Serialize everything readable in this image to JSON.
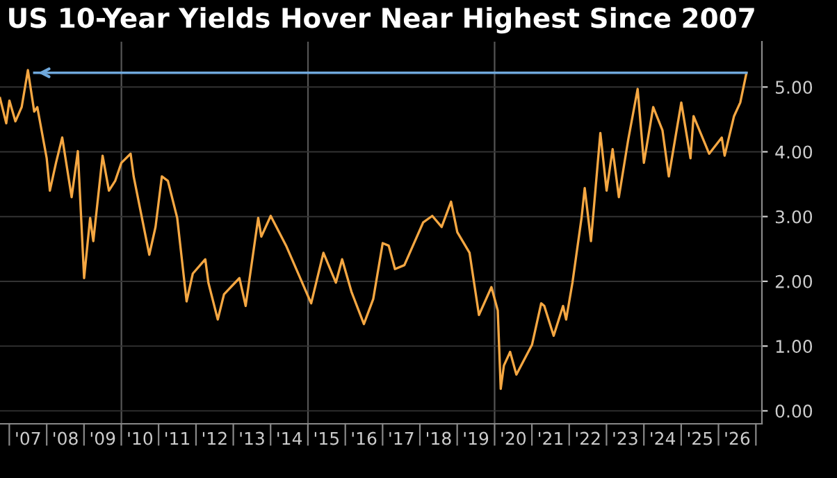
{
  "chart_data": {
    "type": "line",
    "title": "US 10-Year Yields Hover Near Highest Since 2007",
    "series": [
      {
        "color": "#f5a742",
        "x": [
          "2006-10",
          "2006-12",
          "2007-01",
          "2007-03",
          "2007-05",
          "2007-07",
          "2007-09",
          "2007-10",
          "2008-01",
          "2008-02",
          "2008-04",
          "2008-06",
          "2008-09",
          "2008-11",
          "2009-01",
          "2009-03",
          "2009-04",
          "2009-07",
          "2009-09",
          "2009-11",
          "2010-01",
          "2010-04",
          "2010-05",
          "2010-10",
          "2010-12",
          "2011-02",
          "2011-04",
          "2011-07",
          "2011-10",
          "2011-12",
          "2012-04",
          "2012-05",
          "2012-08",
          "2012-10",
          "2013-03",
          "2013-05",
          "2013-09",
          "2013-10",
          "2014-01",
          "2014-06",
          "2015-02",
          "2015-06",
          "2015-10",
          "2015-12",
          "2016-03",
          "2016-07",
          "2016-10",
          "2017-01",
          "2017-03",
          "2017-05",
          "2017-08",
          "2018-02",
          "2018-05",
          "2018-08",
          "2018-11",
          "2019-01",
          "2019-05",
          "2019-08",
          "2019-12",
          "2020-02",
          "2020-03",
          "2020-04",
          "2020-06",
          "2020-08",
          "2021-01",
          "2021-04",
          "2021-05",
          "2021-08",
          "2021-11",
          "2021-12",
          "2022-02",
          "2022-05",
          "2022-06",
          "2022-08",
          "2022-11",
          "2023-01",
          "2023-03",
          "2023-05",
          "2023-08",
          "2023-11",
          "2024-01",
          "2024-04",
          "2024-07",
          "2024-09",
          "2025-01",
          "2025-04",
          "2025-05",
          "2025-10",
          "2026-02",
          "2026-03",
          "2026-06",
          "2026-08",
          "2026-10"
        ],
        "values": [
          4.83,
          4.44,
          4.79,
          4.47,
          4.69,
          5.26,
          4.62,
          4.69,
          3.9,
          3.4,
          3.83,
          4.22,
          3.3,
          4.01,
          2.05,
          2.98,
          2.62,
          3.94,
          3.4,
          3.55,
          3.83,
          3.97,
          3.62,
          2.41,
          2.84,
          3.62,
          3.55,
          2.98,
          1.69,
          2.12,
          2.34,
          1.98,
          1.41,
          1.8,
          2.05,
          1.62,
          2.98,
          2.69,
          3.01,
          2.55,
          1.66,
          2.44,
          1.98,
          2.34,
          1.84,
          1.34,
          1.73,
          2.59,
          2.55,
          2.19,
          2.25,
          2.91,
          3.01,
          2.84,
          3.23,
          2.76,
          2.44,
          1.48,
          1.91,
          1.55,
          0.34,
          0.7,
          0.91,
          0.56,
          1.02,
          1.66,
          1.62,
          1.16,
          1.62,
          1.41,
          1.98,
          2.98,
          3.44,
          2.62,
          4.29,
          3.4,
          4.04,
          3.3,
          4.19,
          4.97,
          3.83,
          4.69,
          4.33,
          3.62,
          4.76,
          3.9,
          4.55,
          3.97,
          4.22,
          3.94,
          4.55,
          4.76,
          5.22
        ]
      },
      {
        "color": "#6fa8dc",
        "x": [
          "2007-09",
          "2026-10"
        ],
        "values": [
          5.22,
          5.22
        ]
      }
    ],
    "xlim": [
      "2006-10",
      "2027-03"
    ],
    "xticks": [
      {
        "value": "2007-07-02",
        "label": "'07"
      },
      {
        "value": "2008-07-02",
        "label": "'08"
      },
      {
        "value": "2009-07-02",
        "label": "'09"
      },
      {
        "value": "2010-07-02",
        "label": "'10"
      },
      {
        "value": "2011-07-02",
        "label": "'11"
      },
      {
        "value": "2012-07-02",
        "label": "'12"
      },
      {
        "value": "2013-07-02",
        "label": "'13"
      },
      {
        "value": "2014-07-02",
        "label": "'14"
      },
      {
        "value": "2015-07-02",
        "label": "'15"
      },
      {
        "value": "2016-07-02",
        "label": "'16"
      },
      {
        "value": "2017-07-02",
        "label": "'17"
      },
      {
        "value": "2018-07-02",
        "label": "'18"
      },
      {
        "value": "2019-07-02",
        "label": "'19"
      },
      {
        "value": "2020-07-02",
        "label": "'20"
      },
      {
        "value": "2021-07-02",
        "label": "'21"
      },
      {
        "value": "2022-07-02",
        "label": "'22"
      },
      {
        "value": "2023-07-02",
        "label": "'23"
      },
      {
        "value": "2024-07-02",
        "label": "'24"
      },
      {
        "value": "2025-07-02",
        "label": "'25"
      },
      {
        "value": "2026-07-02",
        "label": "'26"
      }
    ],
    "ylim": [
      -0.2,
      5.7
    ],
    "yticks": [
      {
        "value": 0,
        "label": "0.00"
      },
      {
        "value": 1,
        "label": "1.00"
      },
      {
        "value": 2,
        "label": "2.00"
      },
      {
        "value": 3,
        "label": "3.00"
      },
      {
        "value": 4,
        "label": "4.00"
      },
      {
        "value": 5,
        "label": "5.00"
      }
    ],
    "grid": "y",
    "ref_lines": [
      {
        "axis": "x",
        "value": "2010-01-01",
        "color": "#555555"
      },
      {
        "axis": "x",
        "value": "2015-01-01",
        "color": "#555555"
      },
      {
        "axis": "x",
        "value": "2020-01-01",
        "color": "#555555"
      }
    ]
  }
}
